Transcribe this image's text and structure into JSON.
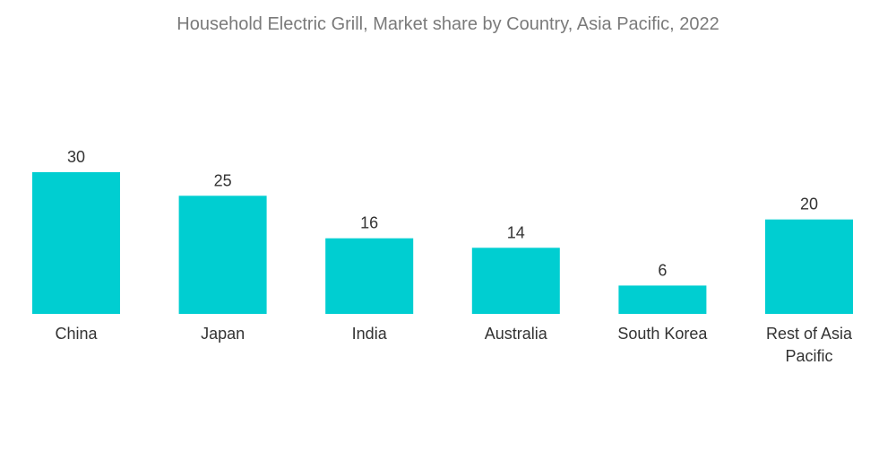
{
  "chart_data": {
    "type": "bar",
    "title": "Household Electric Grill, Market share by Country,  Asia Pacific, 2022",
    "xlabel": "",
    "ylabel": "",
    "categories": [
      "China",
      "Japan",
      "India",
      "Australia",
      "South Korea",
      "Rest of Asia Pacific"
    ],
    "values": [
      30,
      25,
      16,
      14,
      6,
      20
    ],
    "ylim": [
      0,
      30
    ],
    "grid": false,
    "bar_color": "#00CED1",
    "data_labels": true
  }
}
